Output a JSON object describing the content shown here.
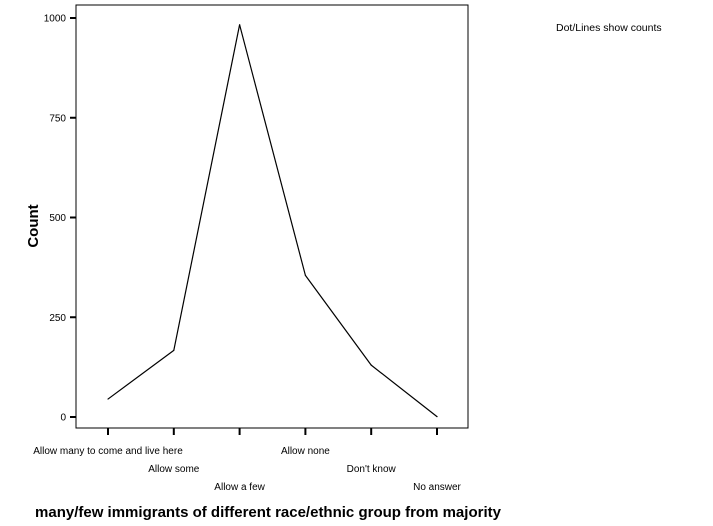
{
  "chart_data": {
    "type": "line",
    "categories": [
      "Allow many to come and live here",
      "Allow some",
      "Allow a few",
      "Allow none",
      "Don't know",
      "No answer"
    ],
    "series": [
      {
        "values": [
          45,
          167,
          983,
          355,
          130,
          1
        ]
      }
    ],
    "xlabel": "many/few immigrants of different race/ethnic group from majority",
    "ylabel": "Count",
    "ylim": [
      0,
      1000
    ],
    "yticks": [
      0,
      250,
      500,
      750,
      1000
    ],
    "ytick_labels": [
      "0",
      "250",
      "500",
      "750",
      "1000"
    ],
    "annotation": "Dot/Lines show counts",
    "grid": false,
    "colors": {
      "line": "#000000",
      "axis": "#000000",
      "frame": "#000000"
    }
  }
}
